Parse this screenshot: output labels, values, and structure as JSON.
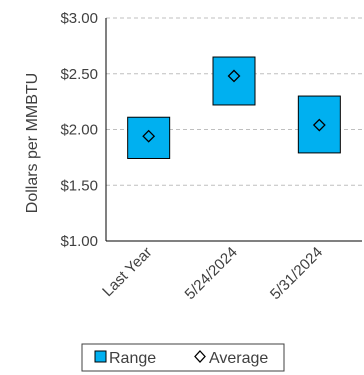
{
  "chart_data": {
    "type": "range-marker",
    "title": "",
    "xlabel": "",
    "ylabel": "Dollars per MMBTU",
    "ylim": [
      1.0,
      3.0
    ],
    "yticks": [
      "$1.00",
      "$1.50",
      "$2.00",
      "$2.50",
      "$3.00"
    ],
    "ytick_values": [
      1.0,
      1.5,
      2.0,
      2.5,
      3.0
    ],
    "grid": "horizontal-dashed",
    "categories": [
      "Last Year",
      "5/24/2024",
      "5/31/2024"
    ],
    "series": [
      {
        "name": "Range",
        "low": [
          1.74,
          2.22,
          1.79
        ],
        "high": [
          2.11,
          2.65,
          2.3
        ],
        "color": "#00b0f0"
      },
      {
        "name": "Average",
        "values": [
          1.94,
          2.48,
          2.04
        ],
        "marker": "diamond"
      }
    ],
    "legend": {
      "placement": "bottom",
      "items": [
        "Range",
        "Average"
      ]
    }
  }
}
